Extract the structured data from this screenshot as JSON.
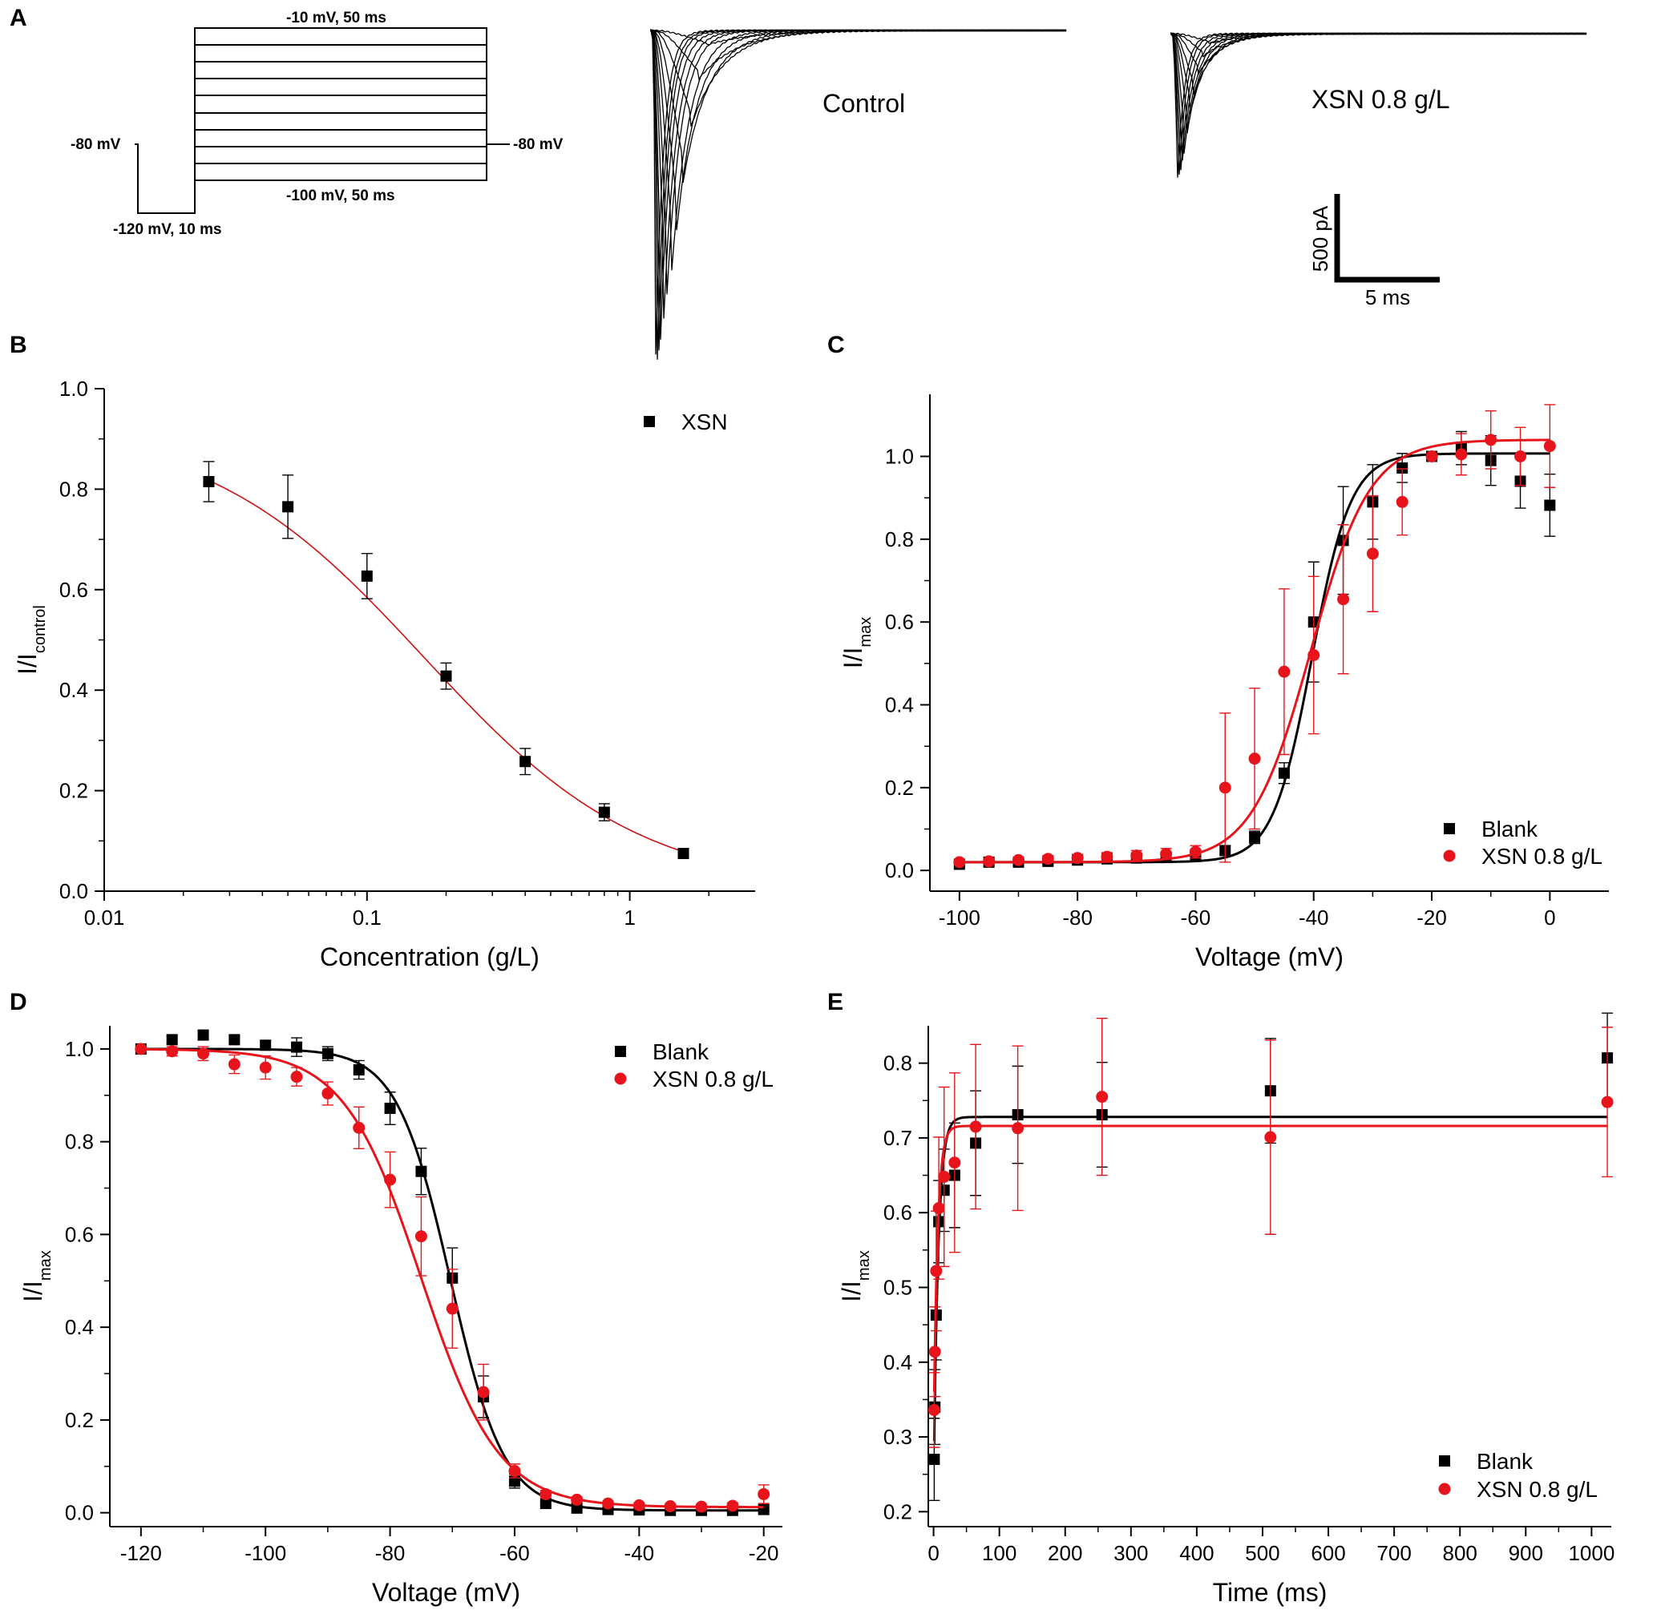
{
  "colors": {
    "black": "#000000",
    "red": "#e8141b",
    "fit_red": "#cc1111"
  },
  "panel_a": {
    "letter": "A",
    "protocol": {
      "step_top": "-10 mV, 50 ms",
      "step_bottom": "-100 mV, 50 ms",
      "hold_left": "-80 mV",
      "hold_right": "-80 mV",
      "prepulse": "-120 mV, 10 ms"
    },
    "traces": {
      "control_label": "Control",
      "drug_label": "XSN 0.8 g/L"
    },
    "scalebar": {
      "current": "500 pA",
      "time": "5 ms"
    }
  },
  "chart_data": [
    {
      "panel": "B",
      "type": "scatter",
      "xscale": "log",
      "xlabel": "Concentration (g/L)",
      "ylabel": "I/I",
      "ylabel_sub": "control",
      "xlim": [
        0.01,
        3.0
      ],
      "ylim": [
        0.0,
        1.0
      ],
      "xticks": [
        0.01,
        0.1,
        1
      ],
      "xtick_labels": [
        "0.01",
        "0.1",
        "1"
      ],
      "yticks": [
        0.0,
        0.2,
        0.4,
        0.6,
        0.8,
        1.0
      ],
      "ytick_labels": [
        "0.0",
        "0.2",
        "0.4",
        "0.6",
        "0.8",
        "1.0"
      ],
      "series": [
        {
          "name": "XSN",
          "marker": "square",
          "color": "#000000",
          "x": [
            0.025,
            0.05,
            0.1,
            0.2,
            0.4,
            0.8,
            1.6
          ],
          "y": [
            0.815,
            0.765,
            0.627,
            0.428,
            0.258,
            0.157,
            0.075
          ],
          "err": [
            0.04,
            0.063,
            0.045,
            0.026,
            0.026,
            0.017,
            0.008
          ],
          "fit": {
            "model": "hill",
            "top": 0.93,
            "bottom": 0.0,
            "ic50": 0.165,
            "n": 1.05,
            "x0": 0.025,
            "x1": 1.6,
            "color": "#cc1111"
          }
        }
      ]
    },
    {
      "panel": "C",
      "type": "scatter",
      "xlabel": "Voltage (mV)",
      "ylabel": "I/I",
      "ylabel_sub": "max",
      "xlim": [
        -105,
        10
      ],
      "ylim": [
        -0.05,
        1.15
      ],
      "xticks": [
        -100,
        -80,
        -60,
        -40,
        -20,
        0
      ],
      "xtick_labels": [
        "-100",
        "-80",
        "-60",
        "-40",
        "-20",
        "0"
      ],
      "yticks": [
        0.0,
        0.2,
        0.4,
        0.6,
        0.8,
        1.0
      ],
      "ytick_labels": [
        "0.0",
        "0.2",
        "0.4",
        "0.6",
        "0.8",
        "1.0"
      ],
      "series": [
        {
          "name": "Blank",
          "marker": "square",
          "color": "#000000",
          "x": [
            -100,
            -95,
            -90,
            -85,
            -80,
            -75,
            -70,
            -65,
            -60,
            -55,
            -50,
            -45,
            -40,
            -35,
            -30,
            -25,
            -20,
            -15,
            -10,
            -5,
            0
          ],
          "y": [
            0.015,
            0.02,
            0.02,
            0.022,
            0.025,
            0.028,
            0.03,
            0.033,
            0.038,
            0.048,
            0.08,
            0.235,
            0.6,
            0.797,
            0.89,
            0.972,
            1.0,
            1.02,
            0.99,
            0.94,
            0.882
          ],
          "err": [
            0.005,
            0.005,
            0.005,
            0.006,
            0.007,
            0.008,
            0.009,
            0.01,
            0.01,
            0.012,
            0.015,
            0.025,
            0.145,
            0.13,
            0.09,
            0.035,
            0.0,
            0.04,
            0.06,
            0.065,
            0.075
          ],
          "fit": {
            "model": "boltzmann_act",
            "bottom": 0.02,
            "top": 1.007,
            "v50": -40.3,
            "k": 3.3,
            "x0": -100,
            "x1": 0,
            "color": "#000000"
          }
        },
        {
          "name": "XSN 0.8 g/L",
          "marker": "circle",
          "color": "#e8141b",
          "x": [
            -100,
            -95,
            -90,
            -85,
            -80,
            -75,
            -70,
            -65,
            -60,
            -55,
            -50,
            -45,
            -40,
            -35,
            -30,
            -25,
            -20,
            -15,
            -10,
            -5,
            0
          ],
          "y": [
            0.02,
            0.022,
            0.025,
            0.028,
            0.03,
            0.033,
            0.036,
            0.04,
            0.045,
            0.2,
            0.27,
            0.48,
            0.52,
            0.655,
            0.765,
            0.89,
            1.0,
            1.005,
            1.04,
            1.0,
            1.025
          ],
          "err": [
            0.005,
            0.006,
            0.007,
            0.008,
            0.009,
            0.01,
            0.012,
            0.013,
            0.015,
            0.18,
            0.17,
            0.2,
            0.19,
            0.18,
            0.14,
            0.08,
            0.0,
            0.05,
            0.07,
            0.07,
            0.1
          ],
          "fit": {
            "model": "boltzmann_act",
            "bottom": 0.02,
            "top": 1.04,
            "v50": -40.5,
            "k": 5.0,
            "x0": -100,
            "x1": 0,
            "color": "#e8141b"
          }
        }
      ]
    },
    {
      "panel": "D",
      "type": "scatter",
      "xlabel": "Voltage (mV)",
      "ylabel": "I/I",
      "ylabel_sub": "max",
      "xlim": [
        -125,
        -17
      ],
      "ylim": [
        -0.03,
        1.05
      ],
      "xticks": [
        -120,
        -100,
        -80,
        -60,
        -40,
        -20
      ],
      "xtick_labels": [
        "-120",
        "-100",
        "-80",
        "-60",
        "-40",
        "-20"
      ],
      "yticks": [
        0.0,
        0.2,
        0.4,
        0.6,
        0.8,
        1.0
      ],
      "ytick_labels": [
        "0.0",
        "0.2",
        "0.4",
        "0.6",
        "0.8",
        "1.0"
      ],
      "series": [
        {
          "name": "Blank",
          "marker": "square",
          "color": "#000000",
          "x": [
            -120,
            -115,
            -110,
            -105,
            -100,
            -95,
            -90,
            -85,
            -80,
            -75,
            -70,
            -65,
            -60,
            -55,
            -50,
            -45,
            -40,
            -35,
            -30,
            -25,
            -20
          ],
          "y": [
            1.0,
            1.02,
            1.03,
            1.02,
            1.008,
            1.004,
            0.99,
            0.955,
            0.872,
            0.736,
            0.506,
            0.25,
            0.068,
            0.02,
            0.01,
            0.007,
            0.006,
            0.005,
            0.005,
            0.005,
            0.007
          ],
          "err": [
            0.0,
            0.008,
            0.008,
            0.008,
            0.01,
            0.02,
            0.015,
            0.02,
            0.035,
            0.05,
            0.065,
            0.045,
            0.015,
            0.005,
            0.004,
            0.003,
            0.003,
            0.003,
            0.003,
            0.003,
            0.003
          ],
          "fit": {
            "model": "boltzmann_inact",
            "top": 1.0,
            "bottom": 0.005,
            "v50": -70.3,
            "k": 4.3,
            "x0": -120,
            "x1": -20,
            "color": "#000000"
          }
        },
        {
          "name": "XSN 0.8 g/L",
          "marker": "circle",
          "color": "#e8141b",
          "x": [
            -120,
            -115,
            -110,
            -105,
            -100,
            -95,
            -90,
            -85,
            -80,
            -75,
            -70,
            -65,
            -60,
            -55,
            -50,
            -45,
            -40,
            -35,
            -30,
            -25,
            -20
          ],
          "y": [
            1.0,
            0.995,
            0.99,
            0.967,
            0.96,
            0.94,
            0.904,
            0.83,
            0.718,
            0.596,
            0.44,
            0.26,
            0.09,
            0.04,
            0.028,
            0.02,
            0.016,
            0.014,
            0.013,
            0.015,
            0.04
          ],
          "err": [
            0.0,
            0.01,
            0.015,
            0.02,
            0.025,
            0.02,
            0.025,
            0.045,
            0.06,
            0.085,
            0.085,
            0.06,
            0.015,
            0.008,
            0.006,
            0.005,
            0.005,
            0.005,
            0.005,
            0.006,
            0.02
          ],
          "fit": {
            "model": "boltzmann_inact",
            "top": 1.0,
            "bottom": 0.012,
            "v50": -75.0,
            "k": 6.2,
            "x0": -120,
            "x1": -20,
            "color": "#e8141b"
          }
        }
      ]
    },
    {
      "panel": "E",
      "type": "scatter",
      "xlabel": "Time (ms)",
      "ylabel": "I/I",
      "ylabel_sub": "max",
      "xlim": [
        -8,
        1030
      ],
      "ylim": [
        0.18,
        0.85
      ],
      "xticks": [
        0,
        100,
        200,
        300,
        400,
        500,
        600,
        700,
        800,
        900,
        1000
      ],
      "xtick_labels": [
        "0",
        "100",
        "200",
        "300",
        "400",
        "500",
        "600",
        "700",
        "800",
        "900",
        "1000"
      ],
      "yticks": [
        0.2,
        0.3,
        0.4,
        0.5,
        0.6,
        0.7,
        0.8
      ],
      "ytick_labels": [
        "0.2",
        "0.3",
        "0.4",
        "0.5",
        "0.6",
        "0.7",
        "0.8"
      ],
      "series": [
        {
          "name": "Blank",
          "marker": "square",
          "color": "#000000",
          "x": [
            1,
            2,
            4,
            8,
            16,
            32,
            64,
            128,
            256,
            512,
            1024
          ],
          "y": [
            0.27,
            0.34,
            0.463,
            0.588,
            0.63,
            0.65,
            0.693,
            0.731,
            0.731,
            0.763,
            0.807
          ],
          "err": [
            0.055,
            0.05,
            0.06,
            0.055,
            0.055,
            0.07,
            0.07,
            0.065,
            0.07,
            0.07,
            0.06
          ],
          "fit": {
            "model": "exp_recovery",
            "a": 0.728,
            "b": 0.5,
            "tau": 7.0,
            "x0": 1,
            "x1": 1024,
            "color": "#000000"
          }
        },
        {
          "name": "XSN 0.8 g/L",
          "marker": "circle",
          "color": "#e8141b",
          "x": [
            1,
            2,
            4,
            8,
            16,
            32,
            64,
            128,
            256,
            512,
            1024
          ],
          "y": [
            0.336,
            0.414,
            0.522,
            0.606,
            0.648,
            0.667,
            0.715,
            0.713,
            0.755,
            0.701,
            0.748
          ],
          "err": [
            0.05,
            0.06,
            0.08,
            0.095,
            0.12,
            0.12,
            0.11,
            0.11,
            0.105,
            0.13,
            0.1
          ],
          "fit": {
            "model": "exp_recovery",
            "a": 0.716,
            "b": 0.42,
            "tau": 6.0,
            "x0": 1,
            "x1": 1024,
            "color": "#e8141b"
          }
        }
      ]
    }
  ]
}
